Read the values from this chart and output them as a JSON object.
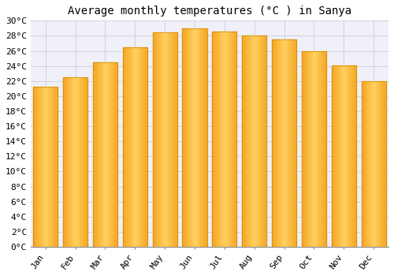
{
  "title": "Average monthly temperatures (°C ) in Sanya",
  "months": [
    "Jan",
    "Feb",
    "Mar",
    "Apr",
    "May",
    "Jun",
    "Jul",
    "Aug",
    "Sep",
    "Oct",
    "Nov",
    "Dec"
  ],
  "values": [
    21.2,
    22.5,
    24.5,
    26.5,
    28.5,
    29.0,
    28.6,
    28.0,
    27.5,
    26.0,
    24.1,
    22.0
  ],
  "bar_color_left": "#F5A623",
  "bar_color_center": "#FFD060",
  "bar_color_right": "#E8900A",
  "background_color": "#FFFFFF",
  "plot_bg_color": "#F0F0F8",
  "grid_color": "#CCCCDD",
  "ylim": [
    0,
    30
  ],
  "ytick_step": 2,
  "title_fontsize": 10,
  "tick_fontsize": 8
}
